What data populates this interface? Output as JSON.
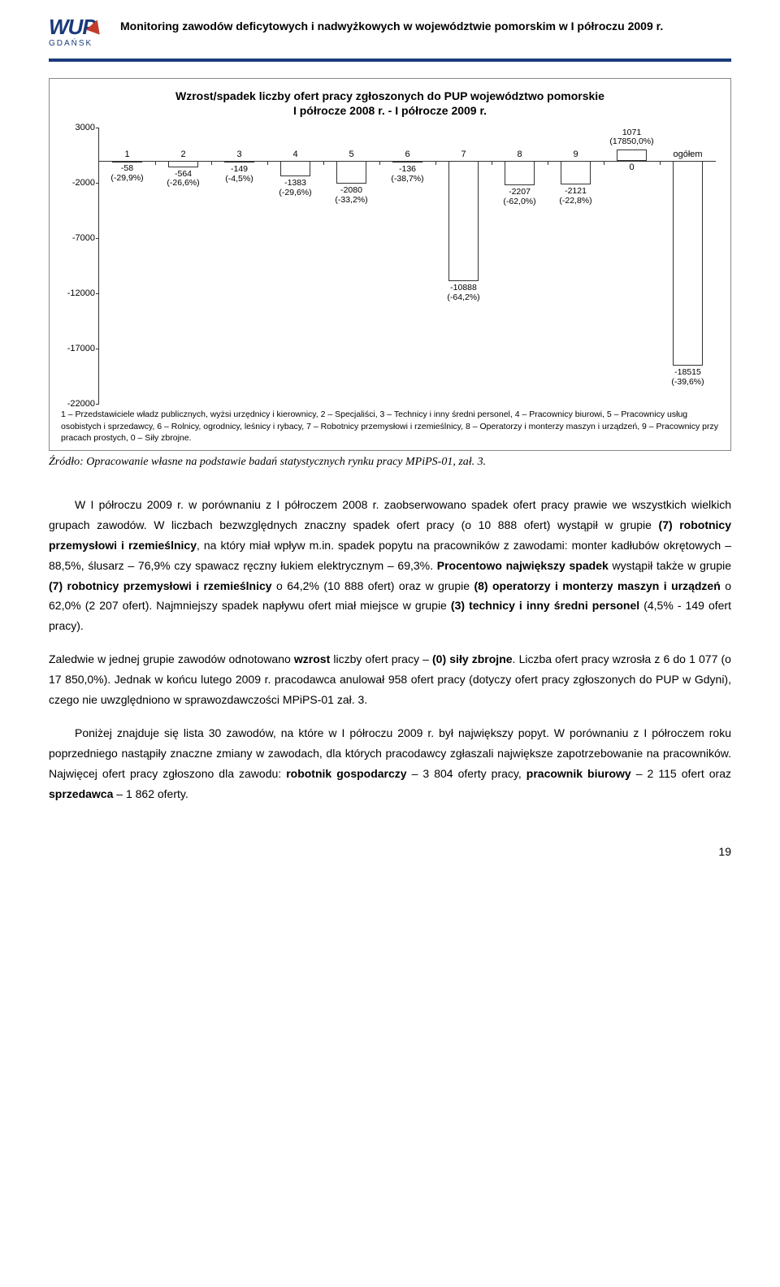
{
  "header": {
    "logo_text": "WUP",
    "logo_sub": "GDAŃSK",
    "title": "Monitoring zawodów deficytowych i nadwyżkowych w województwie pomorskim w I półroczu 2009 r."
  },
  "chart": {
    "title_line1": "Wzrost/spadek liczby ofert pracy zgłoszonych do PUP województwo pomorskie",
    "title_line2": "I półrocze 2008 r. - I półrocze 2009 r.",
    "y_min": -22000,
    "y_max": 3000,
    "y_ticks": [
      3000,
      -2000,
      -7000,
      -12000,
      -17000,
      -22000
    ],
    "bar_fill": "#ffffff",
    "bar_stroke": "#333333",
    "background": "#ffffff",
    "border": "#888888",
    "bars": [
      {
        "cat": "1",
        "value": -58,
        "label1": "-58",
        "label2": "(-29,9%)"
      },
      {
        "cat": "2",
        "value": -564,
        "label1": "-564",
        "label2": "(-26,6%)"
      },
      {
        "cat": "3",
        "value": -149,
        "label1": "-149",
        "label2": "(-4,5%)"
      },
      {
        "cat": "4",
        "value": -1383,
        "label1": "-1383",
        "label2": "(-29,6%)"
      },
      {
        "cat": "5",
        "value": -2080,
        "label1": "-2080",
        "label2": "(-33,2%)"
      },
      {
        "cat": "6",
        "value": -136,
        "label1": "-136",
        "label2": "(-38,7%)"
      },
      {
        "cat": "7",
        "value": -10888,
        "label1": "-10888",
        "label2": "(-64,2%)"
      },
      {
        "cat": "8",
        "value": -2207,
        "label1": "-2207",
        "label2": "(-62,0%)"
      },
      {
        "cat": "9",
        "value": -2121,
        "label1": "-2121",
        "label2": "(-22,8%)"
      },
      {
        "cat": "0",
        "value": 1071,
        "label1": "1071",
        "label2": "(17850,0%)"
      },
      {
        "cat": "ogółem",
        "value": -18515,
        "label1": "-18515",
        "label2": "(-39,6%)"
      }
    ],
    "legend": "1 – Przedstawiciele władz publicznych, wyżsi urzędnicy i kierownicy, 2 – Specjaliści, 3 – Technicy i inny średni personel, 4 – Pracownicy biurowi, 5 – Pracownicy usług osobistych i sprzedawcy, 6 – Rolnicy, ogrodnicy, leśnicy i rybacy, 7 – Robotnicy przemysłowi i rzemieślnicy, 8 – Operatorzy i monterzy maszyn i urządzeń, 9 – Pracownicy przy pracach prostych, 0 – Siły zbrojne."
  },
  "source": "Źródło: Opracowanie własne na podstawie badań statystycznych rynku pracy MPiPS-01, zał. 3.",
  "paragraphs": {
    "p1": "W I półroczu 2009 r. w porównaniu z I półroczem 2008 r. zaobserwowano spadek ofert pracy prawie we wszystkich wielkich grupach zawodów. W liczbach bezwzględnych znaczny spadek ofert pracy (o 10 888 ofert) wystąpił w grupie <b>(7) robotnicy przemysłowi i rzemieślnicy</b>, na który miał wpływ m.in. spadek popytu na pracowników z zawodami: monter kadłubów okrętowych – 88,5%, ślusarz – 76,9% czy spawacz ręczny łukiem elektrycznym – 69,3%. <b>Procentowo największy spadek</b> wystąpił także w grupie <b>(7) robotnicy przemysłowi i rzemieślnicy</b> o 64,2% (10 888 ofert) oraz w grupie <b>(8) operatorzy i monterzy maszyn i urządzeń</b> o 62,0% (2 207 ofert). Najmniejszy spadek napływu ofert miał miejsce w grupie <b>(3) technicy i inny średni personel</b> (4,5% - 149 ofert pracy).",
    "p2": "Zaledwie w jednej grupie zawodów odnotowano <b>wzrost</b> liczby ofert pracy – <b>(0) siły zbrojne</b>. Liczba ofert pracy wzrosła z 6 do 1 077 (o 17 850,0%). Jednak w końcu lutego 2009 r. pracodawca anulował 958 ofert pracy (dotyczy ofert pracy zgłoszonych do PUP w Gdyni), czego nie uwzględniono w sprawozdawczości MPiPS-01 zał. 3.",
    "p3": "Poniżej znajduje się lista 30 zawodów, na które w I półroczu 2009 r. był największy popyt. W porównaniu z I półroczem roku poprzedniego nastąpiły znaczne zmiany w zawodach, dla których pracodawcy zgłaszali największe zapotrzebowanie na pracowników. Najwięcej ofert pracy zgłoszono dla zawodu: <b>robotnik gospodarczy</b> – 3 804 oferty pracy, <b>pracownik biurowy</b> – 2 115 ofert oraz <b>sprzedawca</b> – 1 862 oferty."
  },
  "page_number": "19"
}
